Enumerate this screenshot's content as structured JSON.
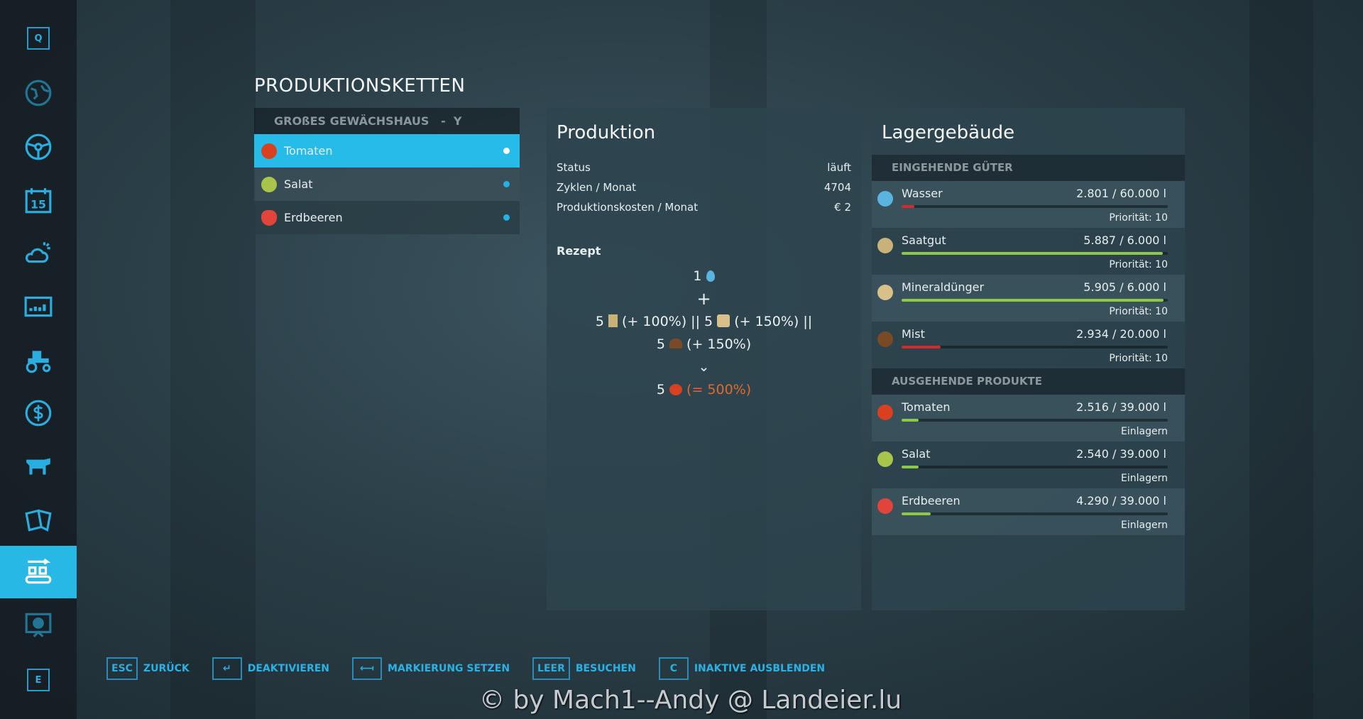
{
  "sidebar": {
    "items": [
      {
        "icon": "q-key-icon",
        "key": "Q"
      },
      {
        "icon": "map-icon"
      },
      {
        "icon": "steering-wheel-icon"
      },
      {
        "icon": "calendar-icon",
        "label": "15"
      },
      {
        "icon": "weather-icon"
      },
      {
        "icon": "statistics-icon"
      },
      {
        "icon": "tractor-icon"
      },
      {
        "icon": "finance-icon"
      },
      {
        "icon": "animals-icon"
      },
      {
        "icon": "contracts-icon"
      },
      {
        "icon": "production-icon",
        "active": true
      },
      {
        "icon": "help-icon"
      },
      {
        "icon": "e-key-icon",
        "key": "E"
      }
    ]
  },
  "page": {
    "title": "PRODUKTIONSKETTEN"
  },
  "list": {
    "header": "GROßES GEWÄCHSHAUS   -  Y",
    "items": [
      {
        "label": "Tomaten",
        "selected": true
      },
      {
        "label": "Salat"
      },
      {
        "label": "Erdbeeren"
      }
    ]
  },
  "production": {
    "title": "Produktion",
    "rows": [
      {
        "k": "Status",
        "v": "läuft"
      },
      {
        "k": "Zyklen / Monat",
        "v": "4704"
      },
      {
        "k": "Produktionskosten / Monat",
        "v": "€ 2"
      }
    ],
    "recipe_title": "Rezept",
    "recipe": {
      "l1": "1",
      "plus": "+",
      "l3a": "5",
      "l3b": "(+ 100%)",
      "l3c": "|| 5",
      "l3d": "(+ 150%)",
      "l3e": "||",
      "l4a": "5",
      "l4b": "(+ 150%)",
      "arrow": "⌄",
      "l6a": "5",
      "l6b": "(= 500%)"
    }
  },
  "storage": {
    "title": "Lagergebäude",
    "incoming_title": "EINGEHENDE GÜTER",
    "outgoing_title": "AUSGEHENDE PRODUKTE",
    "incoming": [
      {
        "name": "Wasser",
        "amount": "2.801  / 60.000 l",
        "fill": 0.047,
        "color": "#d42a2a",
        "sub": "Priorität: 10",
        "icon": "water-icon"
      },
      {
        "name": "Saatgut",
        "amount": "5.887  / 6.000 l",
        "fill": 0.981,
        "color": "#8cc94a",
        "sub": "Priorität: 10",
        "icon": "seeds-icon"
      },
      {
        "name": "Mineraldünger",
        "amount": "5.905  / 6.000 l",
        "fill": 0.984,
        "color": "#8cc94a",
        "sub": "Priorität: 10",
        "icon": "fertilizer-icon"
      },
      {
        "name": "Mist",
        "amount": "2.934  / 20.000 l",
        "fill": 0.147,
        "color": "#d42a2a",
        "sub": "Priorität: 10",
        "icon": "manure-icon"
      }
    ],
    "outgoing": [
      {
        "name": "Tomaten",
        "amount": "2.516  / 39.000 l",
        "fill": 0.065,
        "color": "#8cc94a",
        "sub": "Einlagern",
        "icon": "tomato-icon"
      },
      {
        "name": "Salat",
        "amount": "2.540  / 39.000 l",
        "fill": 0.065,
        "color": "#8cc94a",
        "sub": "Einlagern",
        "icon": "lettuce-icon"
      },
      {
        "name": "Erdbeeren",
        "amount": "4.290  / 39.000 l",
        "fill": 0.11,
        "color": "#8cc94a",
        "sub": "Einlagern",
        "icon": "strawberry-icon"
      }
    ]
  },
  "hints": [
    {
      "key": "ESC",
      "label": "ZURÜCK"
    },
    {
      "key": "↵",
      "label": "DEAKTIVIEREN"
    },
    {
      "key": "⟻",
      "label": "MARKIERUNG SETZEN"
    },
    {
      "key": "LEER",
      "label": "BESUCHEN"
    },
    {
      "key": "C",
      "label": "INAKTIVE AUSBLENDEN"
    }
  ],
  "watermark": "© by Mach1--Andy @ Landeier.lu",
  "colors": {
    "accent": "#26bbe9",
    "tomato": "#d9401f",
    "lettuce": "#a8c44a",
    "strawberry": "#e0443a"
  }
}
